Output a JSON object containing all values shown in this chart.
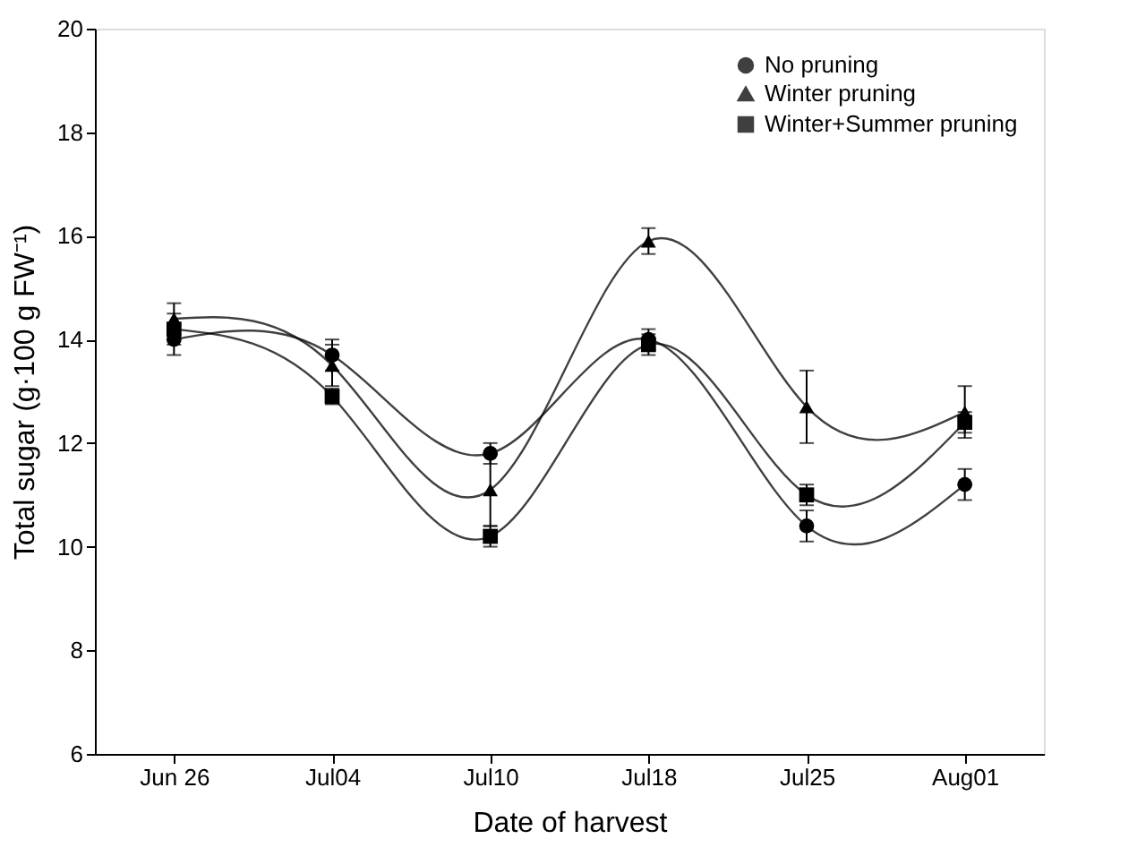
{
  "chart_data": {
    "type": "line",
    "xlabel": "Date of harvest",
    "ylabel": "Total sugar (g·100 g FW⁻¹)",
    "categories": [
      "Jun 26",
      "Jul04",
      "Jul10",
      "Jul18",
      "Jul25",
      "Aug01"
    ],
    "ylim": [
      6,
      20
    ],
    "yticks": [
      6,
      8,
      10,
      12,
      14,
      16,
      18,
      20
    ],
    "grid": false,
    "legend": "top right",
    "series": [
      {
        "name": "No pruning",
        "color": "#000000",
        "marker": "circle",
        "values": [
          14.0,
          13.7,
          11.8,
          14.0,
          10.4,
          11.2
        ],
        "errors": [
          0.3,
          0.3,
          0.2,
          0.2,
          0.3,
          0.3
        ]
      },
      {
        "name": "Winter pruning",
        "color": "#000000",
        "marker": "triangle",
        "values": [
          14.4,
          13.5,
          11.1,
          15.9,
          12.7,
          12.6
        ],
        "errors": [
          0.3,
          0.4,
          0.7,
          0.25,
          0.7,
          0.5
        ]
      },
      {
        "name": "Winter+Summer pruning",
        "color": "#000000",
        "marker": "square",
        "values": [
          14.2,
          12.9,
          10.2,
          13.9,
          11.0,
          12.4
        ],
        "errors": [
          0.3,
          0.15,
          0.2,
          0.2,
          0.2,
          0.2
        ]
      }
    ]
  }
}
